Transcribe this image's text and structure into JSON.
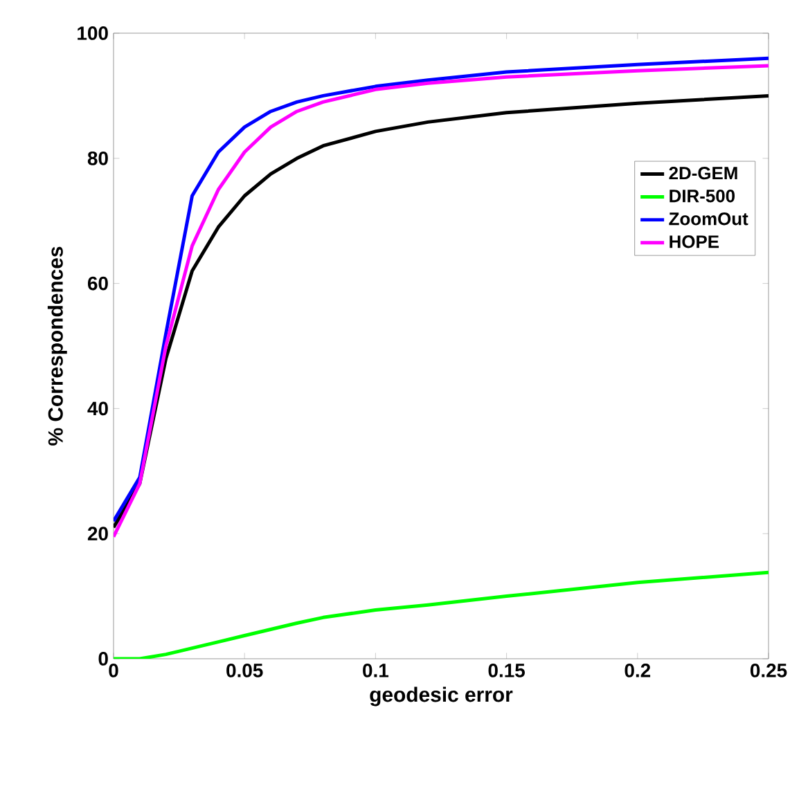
{
  "chart_data": {
    "type": "line",
    "xlabel": "geodesic error",
    "ylabel": "% Correspondences",
    "x": [
      0,
      0.01,
      0.02,
      0.03,
      0.04,
      0.05,
      0.06,
      0.07,
      0.08,
      0.1,
      0.12,
      0.15,
      0.2,
      0.25
    ],
    "series": [
      {
        "name": "2D-GEM",
        "color": "#000000",
        "values": [
          21,
          28,
          48,
          62,
          69,
          74,
          77.5,
          80,
          82,
          84.3,
          85.8,
          87.3,
          88.8,
          90
        ]
      },
      {
        "name": "DIR-500",
        "color": "#00ff00",
        "values": [
          0,
          0,
          0.7,
          1.7,
          2.7,
          3.7,
          4.7,
          5.7,
          6.6,
          7.8,
          8.6,
          10,
          12.2,
          13.8
        ]
      },
      {
        "name": "ZoomOut",
        "color": "#0000ff",
        "values": [
          22,
          29,
          52,
          74,
          81,
          85,
          87.5,
          89,
          90,
          91.5,
          92.5,
          93.8,
          95,
          96
        ]
      },
      {
        "name": "HOPE",
        "color": "#ff00ff",
        "values": [
          19.5,
          28,
          50,
          66,
          75,
          81,
          85,
          87.5,
          89,
          91,
          92,
          93,
          94,
          94.8
        ]
      }
    ],
    "xlim": [
      0,
      0.25
    ],
    "ylim": [
      0,
      100
    ],
    "xticks": [
      0,
      0.05,
      0.1,
      0.15,
      0.2,
      0.25
    ],
    "yticks": [
      0,
      20,
      40,
      60,
      80,
      100
    ],
    "legend": "right",
    "grid": false,
    "marker": "none",
    "line_style": "solid"
  }
}
